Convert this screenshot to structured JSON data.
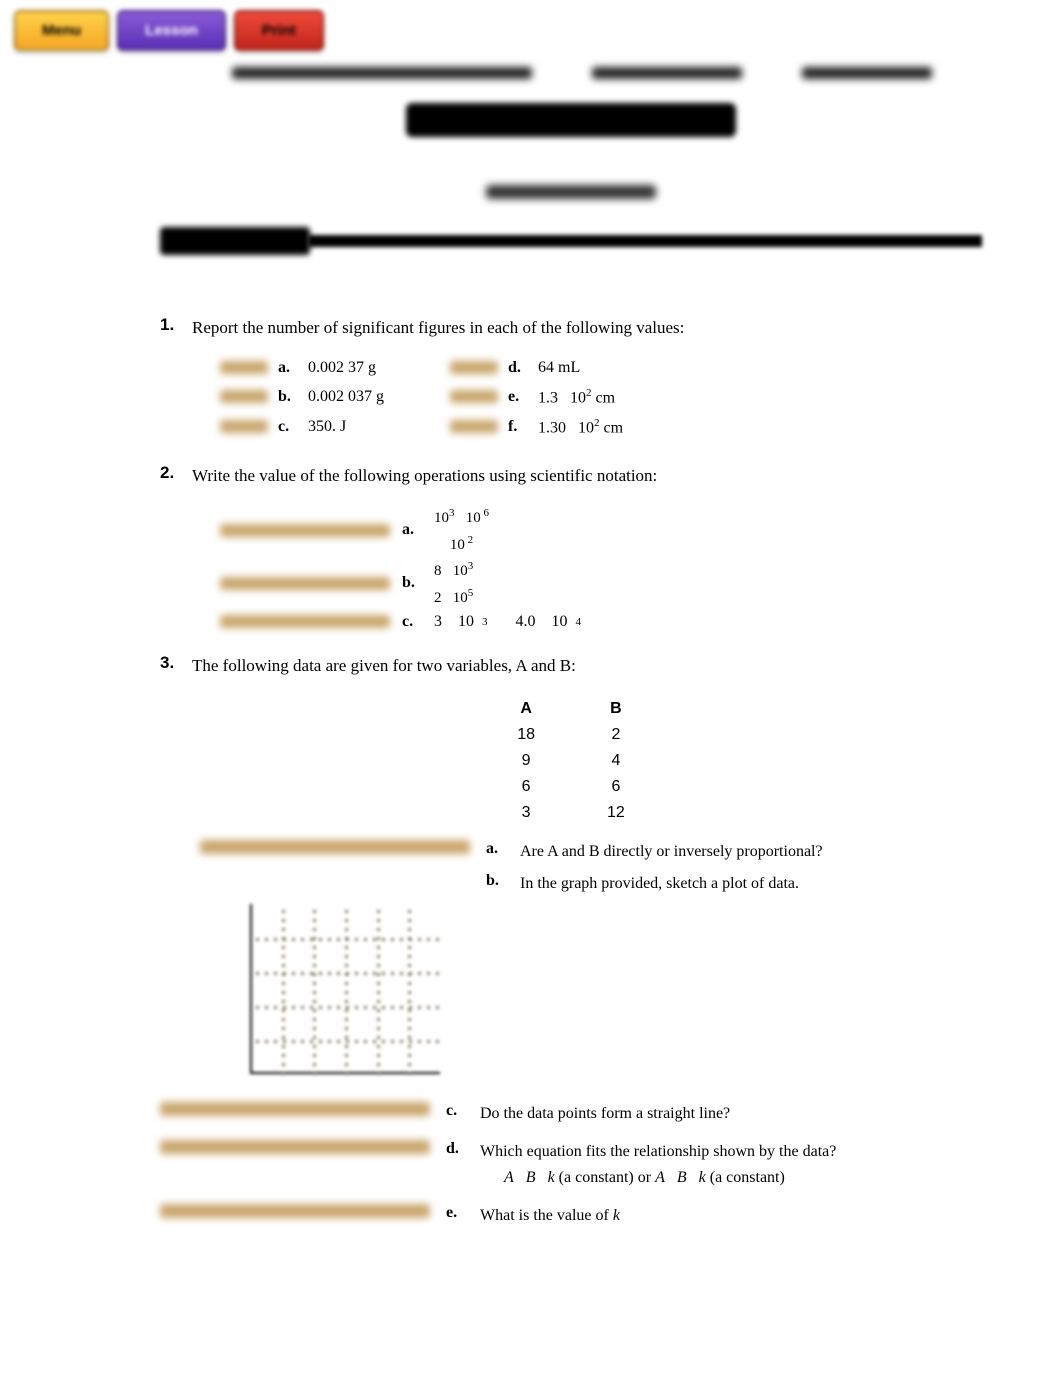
{
  "buttons": {
    "menu": "Menu",
    "lesson": "Lesson",
    "print": "Print"
  },
  "q1": {
    "num": "1.",
    "prompt": "Report the number of significant figures in each of the following values:",
    "items": {
      "a": {
        "l": "a.",
        "v": "0.002 37 g"
      },
      "b": {
        "l": "b.",
        "v": "0.002 037 g"
      },
      "c": {
        "l": "c.",
        "v": "350. J"
      },
      "d": {
        "l": "d.",
        "v": "64 mL"
      },
      "e": {
        "l": "e.",
        "pre": "1.3",
        "base": "10",
        "exp": "2",
        "unit": " cm"
      },
      "f": {
        "l": "f.",
        "pre": "1.30",
        "base": "10",
        "exp": "2",
        "unit": " cm"
      }
    }
  },
  "q2": {
    "num": "2.",
    "prompt": "Write the value of the following operations using scientific notation:",
    "items": {
      "a": {
        "l": "a."
      },
      "b": {
        "l": "b."
      },
      "c": {
        "l": "c.",
        "pre": "3",
        "mid": "4.0"
      }
    }
  },
  "q3": {
    "num": "3.",
    "prompt": "The following data are given for two variables, A and B:",
    "table": {
      "headers": [
        "A",
        "B"
      ],
      "rows": [
        [
          "18",
          "2"
        ],
        [
          "9",
          "4"
        ],
        [
          "6",
          "6"
        ],
        [
          "3",
          "12"
        ]
      ]
    },
    "subs": {
      "a": {
        "l": "a.",
        "t": "Are A and B directly or inversely proportional?"
      },
      "b": {
        "l": "b.",
        "t": "In the graph provided, sketch a plot of data."
      },
      "c": {
        "l": "c.",
        "t": "Do the data points form a straight line?"
      },
      "d": {
        "l": "d.",
        "t": "Which equation fits the relationship shown by the data?"
      },
      "d_eq_parts": {
        "A": "A",
        "B": "B",
        "k1": "k (a constant) or ",
        "A2": "A",
        "B2": "B",
        "k2": "k (a constant)"
      },
      "e": {
        "l": "e.",
        "t": "What is the value of ",
        "var": "k"
      }
    }
  },
  "colors": {
    "blur_answer": "#c9a66b",
    "text": "#000000"
  }
}
